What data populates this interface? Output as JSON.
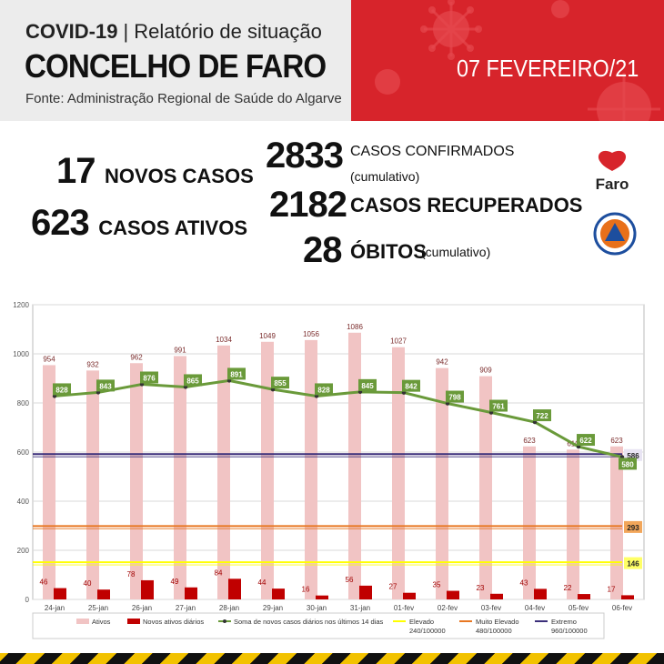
{
  "header": {
    "title_prefix": "COVID-19",
    "separator": "|",
    "title_suffix": "Relatório de situação",
    "municipality": "CONCELHO DE FARO",
    "source": "Fonte: Administração Regional de Saúde do Algarve",
    "date": "07 FEVEREIRO/21"
  },
  "stats": {
    "new_cases_value": "17",
    "new_cases_label": "NOVOS CASOS",
    "active_value": "623",
    "active_label": "CASOS ATIVOS",
    "confirmed_value": "2833",
    "confirmed_label": "CASOS CONFIRMADOS",
    "confirmed_note": "(cumulativo)",
    "recovered_value": "2182",
    "recovered_label": "CASOS RECUPERADOS",
    "deaths_value": "28",
    "deaths_label": "ÓBITOS",
    "deaths_note": "(cumulativo)"
  },
  "logos": {
    "faro_text": "Faro",
    "faro_color": "#d7242b",
    "civil_protection": "civil-protection-seal"
  },
  "chart_data": {
    "type": "bar",
    "categories": [
      "24-jan",
      "25-jan",
      "26-jan",
      "27-jan",
      "28-jan",
      "29-jan",
      "30-jan",
      "31-jan",
      "01-fev",
      "02-fev",
      "03-fev",
      "04-fev",
      "05-fev",
      "06-fev"
    ],
    "y_ticks": [
      "0",
      "200",
      "400",
      "600",
      "800",
      "1000",
      "1200"
    ],
    "ylim": [
      0,
      1200
    ],
    "series": [
      {
        "name": "Ativos",
        "kind": "bar",
        "color": "#f1c4c4",
        "values": [
          954,
          932,
          962,
          991,
          1034,
          1049,
          1056,
          1086,
          1027,
          942,
          909,
          623,
          610,
          623
        ],
        "labels": [
          "954",
          "932",
          "962",
          "991",
          "1034",
          "1049",
          "1056",
          "1086",
          "1027",
          "942",
          "909",
          "623",
          "610",
          "623"
        ]
      },
      {
        "name": "Novos ativos diários",
        "kind": "bar",
        "color": "#c00000",
        "values": [
          46,
          40,
          78,
          49,
          84,
          44,
          16,
          56,
          27,
          35,
          23,
          43,
          22,
          17
        ],
        "labels": [
          "46",
          "40",
          "78",
          "49",
          "84",
          "44",
          "16",
          "56",
          "27",
          "35",
          "23",
          "43",
          "22",
          "17"
        ]
      },
      {
        "name": "Soma de novos casos diários nos últimos 14 dias",
        "kind": "line",
        "color": "#6a9a3a",
        "values": [
          828,
          843,
          876,
          865,
          891,
          855,
          828,
          845,
          842,
          798,
          761,
          722,
          622,
          580
        ],
        "labels": [
          "828",
          "843",
          "876",
          "865",
          "891",
          "855",
          "828",
          "845",
          "842",
          "798",
          "761",
          "722",
          "622",
          "580"
        ]
      }
    ],
    "thresholds": [
      {
        "name": "Elevado",
        "sub": "240/100000",
        "value": 146,
        "label": "146",
        "color": "#ffff00"
      },
      {
        "name": "Muito Elevado",
        "sub": "480/100000",
        "value": 293,
        "label": "293",
        "color": "#e87722"
      },
      {
        "name": "Extremo",
        "sub": "960/100000",
        "value": 586,
        "label": "586",
        "color": "#3b2f7a"
      }
    ],
    "grid": true,
    "legend_position": "bottom"
  }
}
